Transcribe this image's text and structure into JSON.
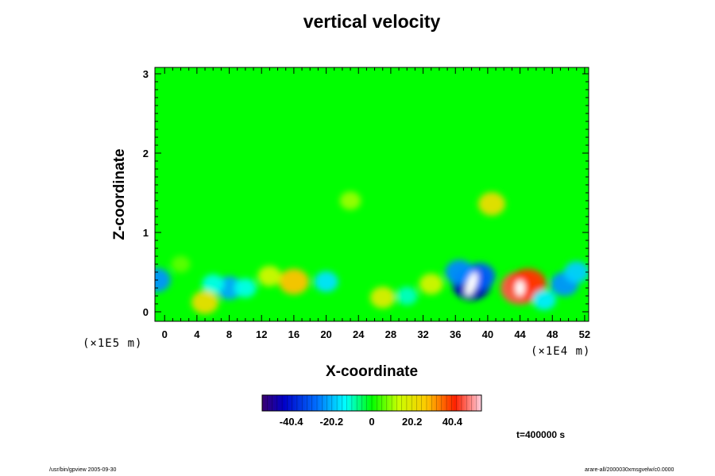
{
  "chart_data": {
    "type": "heatmap",
    "title": "vertical velocity",
    "xlabel": "X-coordinate",
    "ylabel": "Z-coordinate",
    "x_scale_label": "(×1E4 m)",
    "z_scale_label": "(×1E5 m)",
    "xlim": [
      -1.2,
      52.5
    ],
    "ylim": [
      -0.12,
      3.08
    ],
    "x_ticks": [
      "0",
      "4",
      "8",
      "12",
      "16",
      "20",
      "24",
      "28",
      "32",
      "36",
      "40",
      "44",
      "48",
      "52"
    ],
    "y_ticks": [
      "0",
      "1",
      "2",
      "3"
    ],
    "colorbar": {
      "range": [
        -55,
        55
      ],
      "tick_labels": [
        "-40.4",
        "-20.2",
        "0",
        "20.2",
        "40.4"
      ],
      "tick_values": [
        -40.4,
        -20.2,
        0,
        20.2,
        40.4
      ]
    },
    "features": [
      {
        "x": 38,
        "z": 0.35,
        "value": -45
      },
      {
        "x": 39,
        "z": 0.45,
        "value": -30
      },
      {
        "x": 36.5,
        "z": 0.5,
        "value": -25
      },
      {
        "x": 44,
        "z": 0.3,
        "value": 46
      },
      {
        "x": 45,
        "z": 0.35,
        "value": 40
      },
      {
        "x": 16,
        "z": 0.38,
        "value": 28
      },
      {
        "x": 13,
        "z": 0.45,
        "value": 15
      },
      {
        "x": 8,
        "z": 0.3,
        "value": -22
      },
      {
        "x": 6,
        "z": 0.35,
        "value": -12
      },
      {
        "x": 10,
        "z": 0.3,
        "value": -12
      },
      {
        "x": -1,
        "z": 0.4,
        "value": -24
      },
      {
        "x": 5,
        "z": 0.12,
        "value": 22
      },
      {
        "x": 20,
        "z": 0.38,
        "value": -16
      },
      {
        "x": 33,
        "z": 0.35,
        "value": 16
      },
      {
        "x": 27,
        "z": 0.18,
        "value": 18
      },
      {
        "x": 40.5,
        "z": 1.36,
        "value": 22
      },
      {
        "x": 49.5,
        "z": 0.35,
        "value": -24
      },
      {
        "x": 51,
        "z": 0.5,
        "value": -18
      },
      {
        "x": 47,
        "z": 0.15,
        "value": -15
      },
      {
        "x": 30,
        "z": 0.2,
        "value": -10
      },
      {
        "x": 23,
        "z": 1.4,
        "value": 10
      },
      {
        "x": 2,
        "z": 0.6,
        "value": 6
      }
    ]
  },
  "time_label": "t=400000 s",
  "footer": {
    "left": "/usr/bin/gpview 2005-09-30",
    "right": "arare-all/2000030xmsgvelw/c0.0000"
  },
  "colors": {
    "plot_background": "#00ff00",
    "axis": "#000000"
  }
}
